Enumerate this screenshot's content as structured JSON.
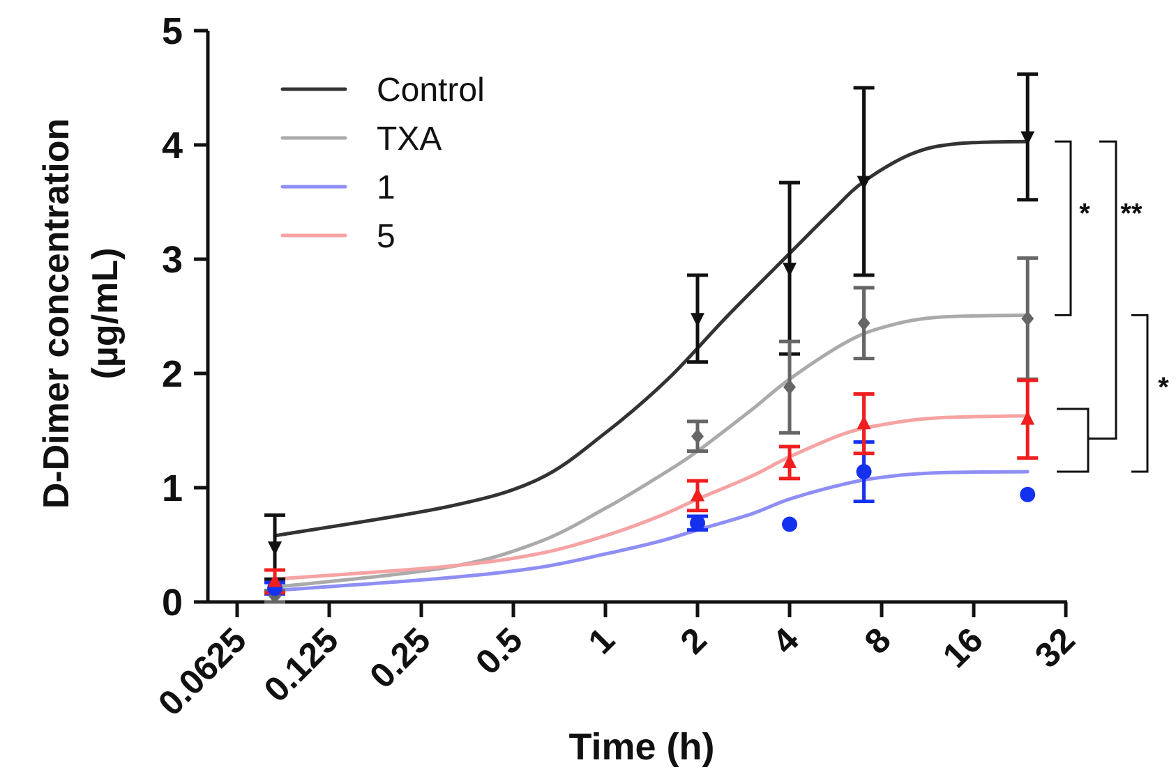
{
  "chart_data": {
    "type": "line",
    "title": "",
    "xlabel": "Time (h)",
    "ylabel_line1": "D-Dimer concentration",
    "ylabel_line2": "(µg/mL)",
    "x_scale": "log2",
    "xlim": [
      0.0625,
      32
    ],
    "ylim": [
      0,
      5
    ],
    "x_ticks": [
      "0.0625",
      "0.125",
      "0.25",
      "0.5",
      "1",
      "2",
      "4",
      "8",
      "16",
      "32"
    ],
    "y_ticks": [
      "0",
      "1",
      "2",
      "3",
      "4",
      "5"
    ],
    "x": [
      0.083,
      2,
      4,
      7,
      24
    ],
    "series": [
      {
        "name": "Control",
        "line_color": "#333333",
        "marker_color": "#111111",
        "marker": "triangle-down",
        "values": [
          0.48,
          2.48,
          2.92,
          3.68,
          4.07
        ],
        "errors": [
          0.28,
          0.38,
          0.75,
          0.82,
          0.55
        ],
        "fit": [
          [
            0.083,
            0.58
          ],
          [
            0.3,
            0.83
          ],
          [
            0.6,
            1.07
          ],
          [
            1.0,
            1.48
          ],
          [
            1.6,
            1.95
          ],
          [
            2.5,
            2.5
          ],
          [
            4.0,
            3.05
          ],
          [
            5.5,
            3.42
          ],
          [
            7.0,
            3.68
          ],
          [
            10,
            3.92
          ],
          [
            14,
            4.01
          ],
          [
            24,
            4.03
          ]
        ]
      },
      {
        "name": "TXA",
        "line_color": "#aaaaaa",
        "marker_color": "#666666",
        "marker": "diamond",
        "values": [
          0.05,
          1.45,
          1.88,
          2.44,
          2.48
        ],
        "errors": [
          0.05,
          0.13,
          0.4,
          0.31,
          0.53
        ],
        "fit": [
          [
            0.083,
            0.13
          ],
          [
            0.3,
            0.3
          ],
          [
            0.6,
            0.52
          ],
          [
            1.0,
            0.82
          ],
          [
            1.5,
            1.1
          ],
          [
            2.0,
            1.32
          ],
          [
            3.0,
            1.68
          ],
          [
            4.0,
            1.95
          ],
          [
            6.0,
            2.26
          ],
          [
            8.0,
            2.4
          ],
          [
            12,
            2.49
          ],
          [
            24,
            2.51
          ]
        ]
      },
      {
        "name": "1",
        "line_color": "#8e8ef5",
        "marker_color": "#1531f0",
        "marker": "circle",
        "values": [
          0.12,
          0.69,
          0.68,
          1.14,
          0.94
        ],
        "errors": [
          0.05,
          0.06,
          0,
          0.26,
          0
        ],
        "fit": [
          [
            0.083,
            0.1
          ],
          [
            0.3,
            0.21
          ],
          [
            0.6,
            0.3
          ],
          [
            1.0,
            0.42
          ],
          [
            1.5,
            0.53
          ],
          [
            2.0,
            0.63
          ],
          [
            3.0,
            0.77
          ],
          [
            4.0,
            0.9
          ],
          [
            6.0,
            1.03
          ],
          [
            8.0,
            1.09
          ],
          [
            12,
            1.13
          ],
          [
            24,
            1.14
          ]
        ]
      },
      {
        "name": "5",
        "line_color": "#f6a3a3",
        "marker_color": "#f01e1e",
        "marker": "triangle-up",
        "values": [
          0.18,
          0.93,
          1.22,
          1.56,
          1.6
        ],
        "errors": [
          0.1,
          0.13,
          0.14,
          0.26,
          0.34
        ],
        "fit": [
          [
            0.083,
            0.2
          ],
          [
            0.3,
            0.31
          ],
          [
            0.6,
            0.42
          ],
          [
            1.0,
            0.58
          ],
          [
            1.5,
            0.75
          ],
          [
            2.0,
            0.9
          ],
          [
            3.0,
            1.1
          ],
          [
            4.0,
            1.27
          ],
          [
            6.0,
            1.47
          ],
          [
            8.0,
            1.55
          ],
          [
            12,
            1.61
          ],
          [
            24,
            1.63
          ]
        ]
      }
    ],
    "legend_placement": "top-left",
    "significance": [
      {
        "label": "*",
        "from": 4.03,
        "to": 2.51
      },
      {
        "label": "**",
        "from": 4.03,
        "to_range": [
          1.14,
          1.63
        ]
      },
      {
        "label": "*",
        "from": 2.51,
        "to": 1.14
      }
    ]
  }
}
